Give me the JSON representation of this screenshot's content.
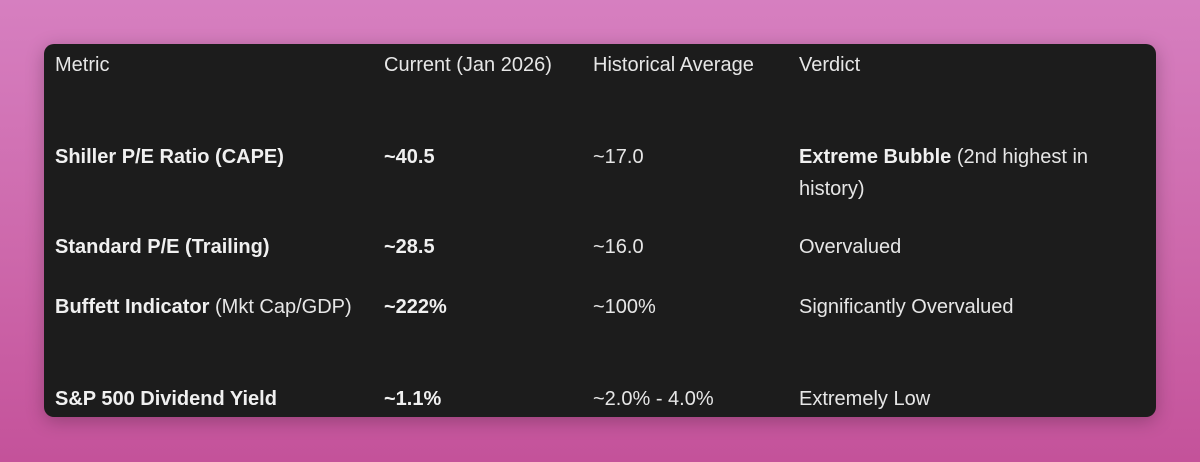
{
  "table": {
    "headers": [
      "Metric",
      "Current (Jan 2026)",
      "Historical Average",
      "Verdict"
    ],
    "rows": [
      {
        "metric_bold": "Shiller P/E Ratio (CAPE)",
        "metric_rest": "",
        "current": "~40.5",
        "historical": "~17.0",
        "verdict_bold": "Extreme Bubble",
        "verdict_rest": " (2nd highest in history)"
      },
      {
        "metric_bold": "Standard P/E (Trailing)",
        "metric_rest": "",
        "current": "~28.5",
        "historical": "~16.0",
        "verdict_bold": "",
        "verdict_rest": "Overvalued"
      },
      {
        "metric_bold": "Buffett Indicator",
        "metric_rest": " (Mkt Cap/GDP)",
        "current": "~222%",
        "historical": "~100%",
        "verdict_bold": "",
        "verdict_rest": "Significantly Overvalued"
      },
      {
        "metric_bold": "S&P 500 Dividend Yield",
        "metric_rest": "",
        "current": "~1.1%",
        "historical": "~2.0% - 4.0%",
        "verdict_bold": "",
        "verdict_rest": "Extremely Low"
      }
    ]
  },
  "colors": {
    "panel": "#1c1c1c",
    "background_top": "#d67fc0",
    "background_bottom": "#c4529a",
    "text": "#e6e6e6"
  }
}
